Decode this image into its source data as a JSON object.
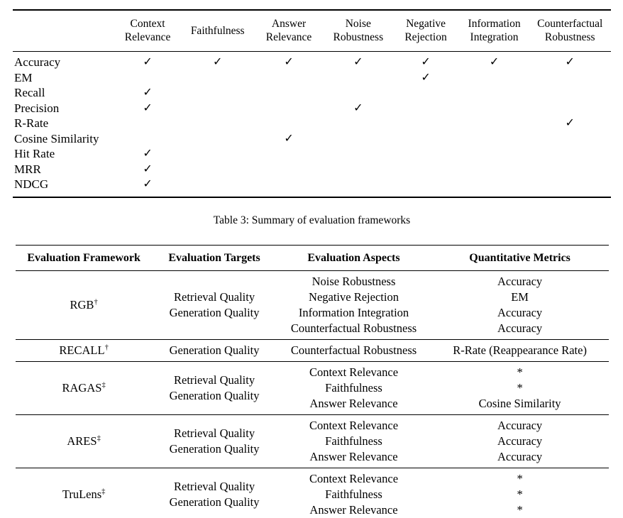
{
  "matrix_table": {
    "check_glyph": "✓",
    "columns": [
      "Context\nRelevance",
      "Faithfulness",
      "Answer\nRelevance",
      "Noise\nRobustness",
      "Negative\nRejection",
      "Information\nIntegration",
      "Counterfactual\nRobustness"
    ],
    "rows": [
      {
        "label": "Accuracy",
        "checks": [
          1,
          1,
          1,
          1,
          1,
          1,
          1
        ]
      },
      {
        "label": "EM",
        "checks": [
          0,
          0,
          0,
          0,
          1,
          0,
          0
        ]
      },
      {
        "label": "Recall",
        "checks": [
          1,
          0,
          0,
          0,
          0,
          0,
          0
        ]
      },
      {
        "label": "Precision",
        "checks": [
          1,
          0,
          0,
          1,
          0,
          0,
          0
        ]
      },
      {
        "label": "R-Rate",
        "checks": [
          0,
          0,
          0,
          0,
          0,
          0,
          1
        ]
      },
      {
        "label": "Cosine Similarity",
        "checks": [
          0,
          0,
          1,
          0,
          0,
          0,
          0
        ]
      },
      {
        "label": "Hit Rate",
        "checks": [
          1,
          0,
          0,
          0,
          0,
          0,
          0
        ]
      },
      {
        "label": "MRR",
        "checks": [
          1,
          0,
          0,
          0,
          0,
          0,
          0
        ]
      },
      {
        "label": "NDCG",
        "checks": [
          1,
          0,
          0,
          0,
          0,
          0,
          0
        ]
      }
    ]
  },
  "caption": "Table 3: Summary of evaluation frameworks",
  "frameworks_table": {
    "columns": [
      "Evaluation Framework",
      "Evaluation Targets",
      "Evaluation Aspects",
      "Quantitative Metrics"
    ],
    "rows": [
      {
        "framework": "RGB",
        "symbol": "†",
        "targets": [
          "Retrieval Quality",
          "Generation Quality"
        ],
        "aspects": [
          "Noise Robustness",
          "Negative Rejection",
          "Information Integration",
          "Counterfactual Robustness"
        ],
        "metrics": [
          "Accuracy",
          "EM",
          "Accuracy",
          "Accuracy"
        ]
      },
      {
        "framework": "RECALL",
        "symbol": "†",
        "targets": [
          "Generation Quality"
        ],
        "aspects": [
          "Counterfactual Robustness"
        ],
        "metrics": [
          "R-Rate (Reappearance Rate)"
        ]
      },
      {
        "framework": "RAGAS",
        "symbol": "‡",
        "targets": [
          "Retrieval Quality",
          "Generation Quality"
        ],
        "aspects": [
          "Context Relevance",
          "Faithfulness",
          "Answer Relevance"
        ],
        "metrics": [
          "*",
          "*",
          "Cosine Similarity"
        ]
      },
      {
        "framework": "ARES",
        "symbol": "‡",
        "targets": [
          "Retrieval Quality",
          "Generation Quality"
        ],
        "aspects": [
          "Context Relevance",
          "Faithfulness",
          "Answer Relevance"
        ],
        "metrics": [
          "Accuracy",
          "Accuracy",
          "Accuracy"
        ]
      },
      {
        "framework": "TruLens",
        "symbol": "‡",
        "targets": [
          "Retrieval Quality",
          "Generation Quality"
        ],
        "aspects": [
          "Context Relevance",
          "Faithfulness",
          "Answer Relevance"
        ],
        "metrics": [
          "*",
          "*",
          "*"
        ]
      }
    ]
  },
  "colors": {
    "text": "#000000",
    "background": "#ffffff",
    "rule": "#000000"
  }
}
